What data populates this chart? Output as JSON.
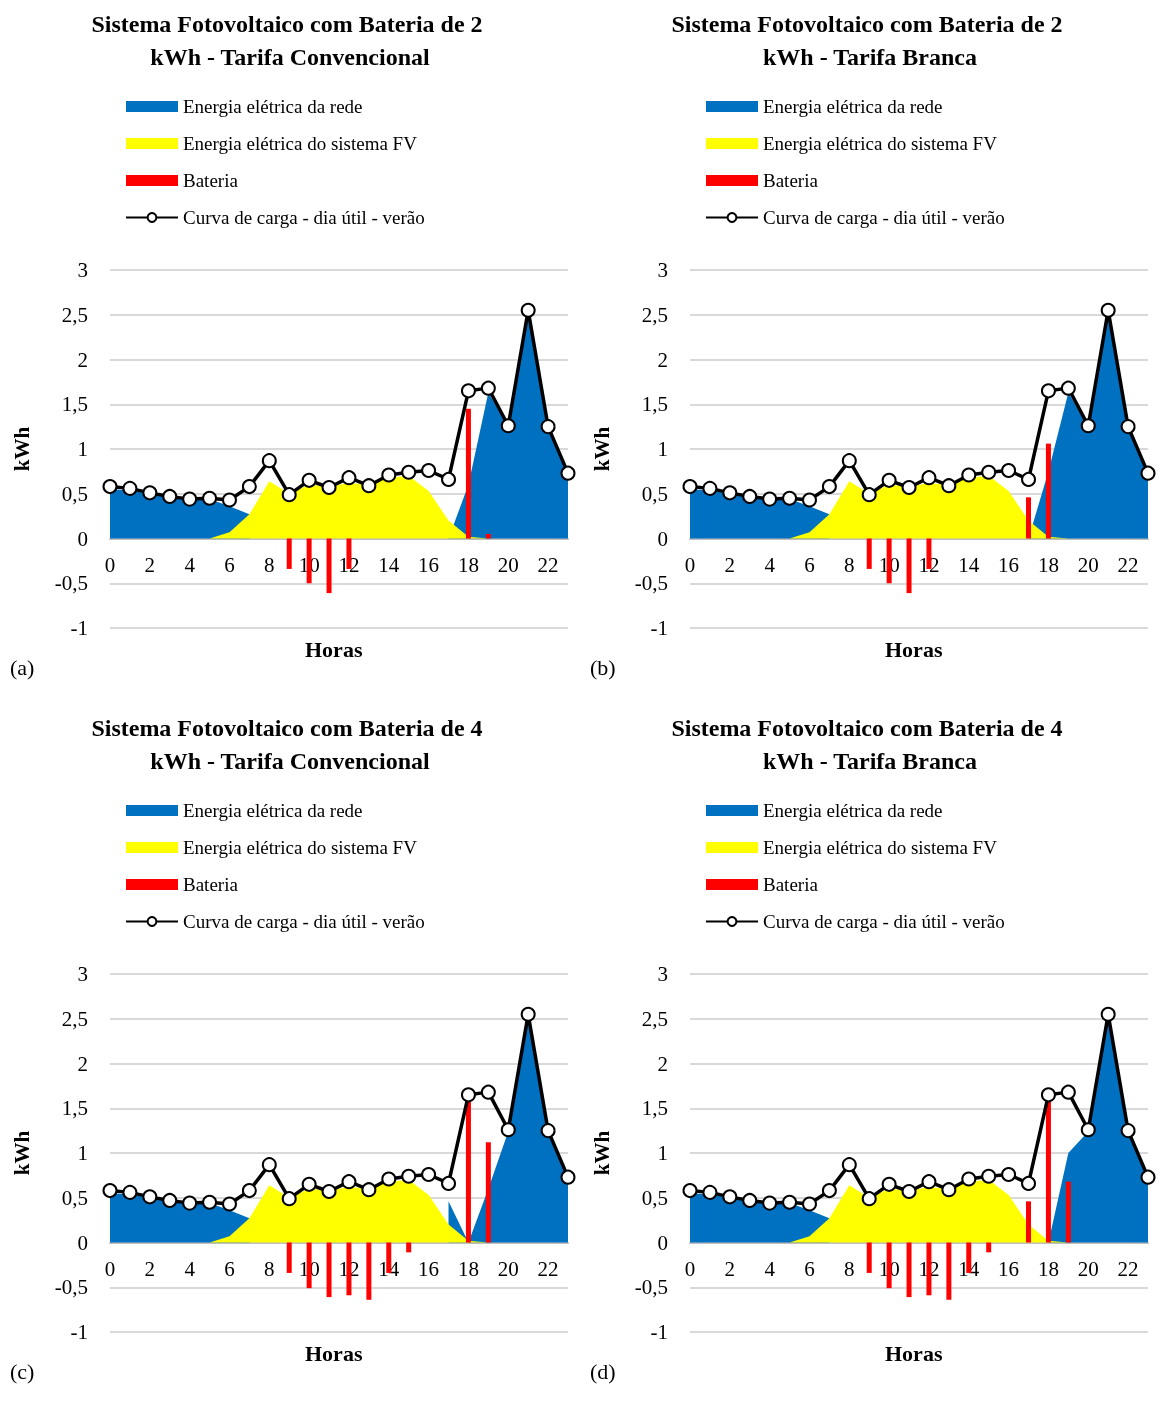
{
  "chart_data": [
    {
      "type": "area",
      "title": "Sistema Fotovoltaico com Bateria de 2 kWh - Tarifa Convencional",
      "xlabel": "Horas",
      "ylabel": "kWh",
      "annotations": [
        "(a)"
      ],
      "categories": [
        "0",
        null,
        "2",
        null,
        "4",
        null,
        "6",
        null,
        "8",
        null,
        "10",
        null,
        "12",
        null,
        "14",
        null,
        "16",
        null,
        "18",
        null,
        "20",
        null,
        "22",
        null
      ],
      "ylim": [
        -1,
        3
      ],
      "yticks": [
        -1,
        {
          "value": -0.5,
          "label": "-0,5"
        },
        0,
        {
          "value": 0.5,
          "label": "0,5"
        },
        1,
        {
          "value": 1.5,
          "label": "1,5"
        },
        2,
        {
          "value": 2.5,
          "label": "2,5"
        },
        3
      ],
      "grid": "y",
      "legend": "top left",
      "series": [
        {
          "name": "Energia elétrica da rede",
          "type": "area",
          "color": "#0070c0",
          "values": [
            0.55,
            0.54,
            0.5,
            0.46,
            0.43,
            0.44,
            0.36,
            0.27,
            null,
            null,
            null,
            null,
            null,
            null,
            null,
            null,
            null,
            0,
            0.6,
            1.63,
            1.24,
            2.52,
            1.23,
            0.72
          ]
        },
        {
          "name": "Energia elétrica do sistema FV",
          "type": "area",
          "color": "#ffff00",
          "values": [
            0,
            0,
            0,
            0,
            0,
            0,
            0.07,
            0.27,
            0.64,
            0.5,
            0.6,
            0.58,
            0.62,
            0.6,
            0.68,
            0.7,
            0.53,
            0.2,
            0.02,
            0,
            0,
            0,
            0,
            0
          ]
        },
        {
          "name": "Bateria",
          "type": "bar",
          "color": "#ff0000",
          "values": [
            null,
            null,
            null,
            null,
            null,
            null,
            null,
            null,
            null,
            -0.34,
            -0.5,
            -0.61,
            -0.34,
            null,
            null,
            null,
            null,
            null,
            1.45,
            0.05,
            null,
            null,
            null,
            null
          ]
        },
        {
          "name": "Curva de carga - dia útil - verão",
          "type": "line",
          "marker": "circle",
          "color": "#000000",
          "values": [
            0.58,
            0.56,
            0.51,
            0.47,
            0.44,
            0.45,
            0.43,
            0.58,
            0.87,
            0.49,
            0.65,
            0.57,
            0.68,
            0.59,
            0.71,
            0.74,
            0.76,
            0.66,
            1.65,
            1.68,
            1.26,
            2.55,
            1.25,
            0.73
          ]
        }
      ]
    },
    {
      "type": "area",
      "title": "Sistema Fotovoltaico com Bateria de 2 kWh - Tarifa Branca",
      "xlabel": "Horas",
      "ylabel": "kWh",
      "annotations": [
        "(b)"
      ],
      "categories": [
        "0",
        null,
        "2",
        null,
        "4",
        null,
        "6",
        null,
        "8",
        null,
        "10",
        null,
        "12",
        null,
        "14",
        null,
        "16",
        null,
        "18",
        null,
        "20",
        null,
        "22",
        null
      ],
      "ylim": [
        -1,
        3
      ],
      "yticks": [
        -1,
        {
          "value": -0.5,
          "label": "-0,5"
        },
        0,
        {
          "value": 0.5,
          "label": "0,5"
        },
        1,
        {
          "value": 1.5,
          "label": "1,5"
        },
        2,
        {
          "value": 2.5,
          "label": "2,5"
        },
        3
      ],
      "grid": "y",
      "legend": "top left",
      "series": [
        {
          "name": "Energia elétrica da rede",
          "type": "area",
          "color": "#0070c0",
          "values": [
            0.55,
            0.54,
            0.5,
            0.46,
            0.43,
            0.44,
            0.36,
            0.27,
            null,
            null,
            null,
            null,
            null,
            null,
            null,
            null,
            null,
            0,
            0.75,
            1.63,
            1.24,
            2.52,
            1.23,
            0.72
          ]
        },
        {
          "name": "Energia elétrica do sistema FV",
          "type": "area",
          "color": "#ffff00",
          "values": [
            0,
            0,
            0,
            0,
            0,
            0,
            0.07,
            0.27,
            0.64,
            0.5,
            0.6,
            0.58,
            0.62,
            0.6,
            0.68,
            0.7,
            0.53,
            0.2,
            0.02,
            0,
            0,
            0,
            0,
            0
          ]
        },
        {
          "name": "Bateria",
          "type": "bar",
          "color": "#ff0000",
          "values": [
            null,
            null,
            null,
            null,
            null,
            null,
            null,
            null,
            null,
            -0.34,
            -0.5,
            -0.61,
            -0.34,
            null,
            null,
            null,
            null,
            0.46,
            1.06,
            null,
            null,
            null,
            null,
            null
          ]
        },
        {
          "name": "Curva de carga - dia útil - verão",
          "type": "line",
          "marker": "circle",
          "color": "#000000",
          "values": [
            0.58,
            0.56,
            0.51,
            0.47,
            0.44,
            0.45,
            0.43,
            0.58,
            0.87,
            0.49,
            0.65,
            0.57,
            0.68,
            0.59,
            0.71,
            0.74,
            0.76,
            0.66,
            1.65,
            1.68,
            1.26,
            2.55,
            1.25,
            0.73
          ]
        }
      ]
    },
    {
      "type": "area",
      "title": "Sistema Fotovoltaico com Bateria de 4 kWh - Tarifa Convencional",
      "xlabel": "Horas",
      "ylabel": "kWh",
      "annotations": [
        "(c)"
      ],
      "categories": [
        "0",
        null,
        "2",
        null,
        "4",
        null,
        "6",
        null,
        "8",
        null,
        "10",
        null,
        "12",
        null,
        "14",
        null,
        "16",
        null,
        "18",
        null,
        "20",
        null,
        "22",
        null
      ],
      "ylim": [
        -1,
        3
      ],
      "yticks": [
        -1,
        {
          "value": -0.5,
          "label": "-0,5"
        },
        0,
        {
          "value": 0.5,
          "label": "0,5"
        },
        1,
        {
          "value": 1.5,
          "label": "1,5"
        },
        2,
        {
          "value": 2.5,
          "label": "2,5"
        },
        3
      ],
      "grid": "y",
      "legend": "top left",
      "series": [
        {
          "name": "Energia elétrica da rede",
          "type": "area",
          "color": "#0070c0",
          "values": [
            0.55,
            0.54,
            0.5,
            0.46,
            0.43,
            0.44,
            0.36,
            0.27,
            null,
            null,
            null,
            null,
            null,
            null,
            null,
            null,
            null,
            0.46,
            0,
            0.6,
            1.24,
            2.52,
            1.23,
            0.72
          ]
        },
        {
          "name": "Energia elétrica do sistema FV",
          "type": "area",
          "color": "#ffff00",
          "values": [
            0,
            0,
            0,
            0,
            0,
            0,
            0.07,
            0.27,
            0.64,
            0.5,
            0.6,
            0.58,
            0.62,
            0.6,
            0.68,
            0.7,
            0.53,
            0.2,
            0.02,
            0,
            0,
            0,
            0,
            0
          ]
        },
        {
          "name": "Bateria",
          "type": "bar",
          "color": "#ff0000",
          "values": [
            null,
            null,
            null,
            null,
            null,
            null,
            null,
            null,
            null,
            -0.34,
            -0.51,
            -0.61,
            -0.59,
            -0.64,
            -0.34,
            -0.11,
            null,
            null,
            1.6,
            1.12,
            null,
            null,
            null,
            null
          ]
        },
        {
          "name": "Curva de carga - dia útil - verão",
          "type": "line",
          "marker": "circle",
          "color": "#000000",
          "values": [
            0.58,
            0.56,
            0.51,
            0.47,
            0.44,
            0.45,
            0.43,
            0.58,
            0.87,
            0.49,
            0.65,
            0.57,
            0.68,
            0.59,
            0.71,
            0.74,
            0.76,
            0.66,
            1.65,
            1.68,
            1.26,
            2.55,
            1.25,
            0.73
          ]
        }
      ]
    },
    {
      "type": "area",
      "title": "Sistema Fotovoltaico com Bateria de 4 kWh - Tarifa Branca",
      "xlabel": "Horas",
      "ylabel": "kWh",
      "annotations": [
        "(d)"
      ],
      "categories": [
        "0",
        null,
        "2",
        null,
        "4",
        null,
        "6",
        null,
        "8",
        null,
        "10",
        null,
        "12",
        null,
        "14",
        null,
        "16",
        null,
        "18",
        null,
        "20",
        null,
        "22",
        null
      ],
      "ylim": [
        -1,
        3
      ],
      "yticks": [
        -1,
        {
          "value": -0.5,
          "label": "-0,5"
        },
        0,
        {
          "value": 0.5,
          "label": "0,5"
        },
        1,
        {
          "value": 1.5,
          "label": "1,5"
        },
        2,
        {
          "value": 2.5,
          "label": "2,5"
        },
        3
      ],
      "grid": "y",
      "legend": "top left",
      "series": [
        {
          "name": "Energia elétrica da rede",
          "type": "area",
          "color": "#0070c0",
          "values": [
            0.55,
            0.54,
            0.5,
            0.46,
            0.43,
            0.44,
            0.36,
            0.27,
            null,
            null,
            null,
            null,
            null,
            null,
            null,
            null,
            null,
            null,
            0,
            1.0,
            1.24,
            2.52,
            1.23,
            0.72
          ]
        },
        {
          "name": "Energia elétrica do sistema FV",
          "type": "area",
          "color": "#ffff00",
          "values": [
            0,
            0,
            0,
            0,
            0,
            0,
            0.07,
            0.27,
            0.64,
            0.5,
            0.6,
            0.58,
            0.62,
            0.6,
            0.68,
            0.7,
            0.53,
            0.2,
            0.02,
            0,
            0,
            0,
            0,
            0
          ]
        },
        {
          "name": "Bateria",
          "type": "bar",
          "color": "#ff0000",
          "values": [
            null,
            null,
            null,
            null,
            null,
            null,
            null,
            null,
            null,
            -0.34,
            -0.51,
            -0.61,
            -0.59,
            -0.64,
            -0.34,
            -0.11,
            null,
            0.46,
            1.6,
            0.68,
            null,
            null,
            null,
            null
          ]
        },
        {
          "name": "Curva de carga - dia útil - verão",
          "type": "line",
          "marker": "circle",
          "color": "#000000",
          "values": [
            0.58,
            0.56,
            0.51,
            0.47,
            0.44,
            0.45,
            0.43,
            0.58,
            0.87,
            0.49,
            0.65,
            0.57,
            0.68,
            0.59,
            0.71,
            0.74,
            0.76,
            0.66,
            1.65,
            1.68,
            1.26,
            2.55,
            1.25,
            0.73
          ]
        }
      ]
    }
  ]
}
